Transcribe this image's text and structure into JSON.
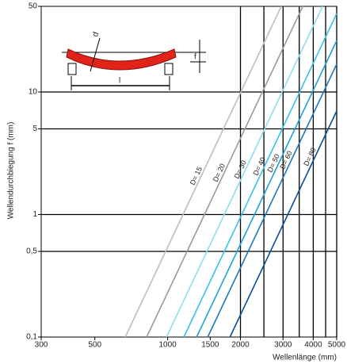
{
  "chart_data": {
    "type": "line",
    "y_label": "Wellendurchbiegung f (mm)",
    "x_label": "Wellenlänge (mm)",
    "annotations": [
      "d",
      "f",
      "l"
    ],
    "log_x": true,
    "log_y": true,
    "xlim": [
      300,
      5000
    ],
    "xticks": [
      300,
      500,
      1000,
      1500,
      2000,
      3000,
      4000,
      5000
    ],
    "xgrid": [
      2000,
      2500,
      3000,
      3500,
      4000,
      4500,
      5000
    ],
    "ylim": [
      0.1,
      50
    ],
    "yticks": [
      {
        "value": 0.1,
        "label": "0,1"
      },
      {
        "value": 0.5,
        "label": "0,5"
      },
      1,
      5,
      10,
      50
    ],
    "ygrid": [
      0.5,
      1,
      5,
      10
    ],
    "series": [
      {
        "name": "D= 15",
        "color": "#bdbdbd",
        "x": [
          668,
          2950
        ],
        "values": [
          0.1,
          50
        ]
      },
      {
        "name": "D= 20",
        "color": "#9a9a9a",
        "x": [
          819,
          3620
        ],
        "values": [
          0.1,
          50
        ]
      },
      {
        "name": "D= 30",
        "color": "#8fdcef",
        "x": [
          989,
          4370
        ],
        "values": [
          0.1,
          50
        ]
      },
      {
        "name": "D= 40",
        "color": "#35c4e6",
        "x": [
          1167,
          5000
        ],
        "values": [
          0.1,
          43.7
        ]
      },
      {
        "name": "D= 50",
        "color": "#1ba2da",
        "x": [
          1318,
          5000
        ],
        "values": [
          0.1,
          26.3
        ]
      },
      {
        "name": "D= 60",
        "color": "#1a78c2",
        "x": [
          1465,
          5000
        ],
        "values": [
          0.1,
          16.9
        ]
      },
      {
        "name": "D= 80",
        "color": "#0b4b9c",
        "x": [
          1810,
          5000
        ],
        "values": [
          0.1,
          7.0
        ]
      }
    ]
  }
}
